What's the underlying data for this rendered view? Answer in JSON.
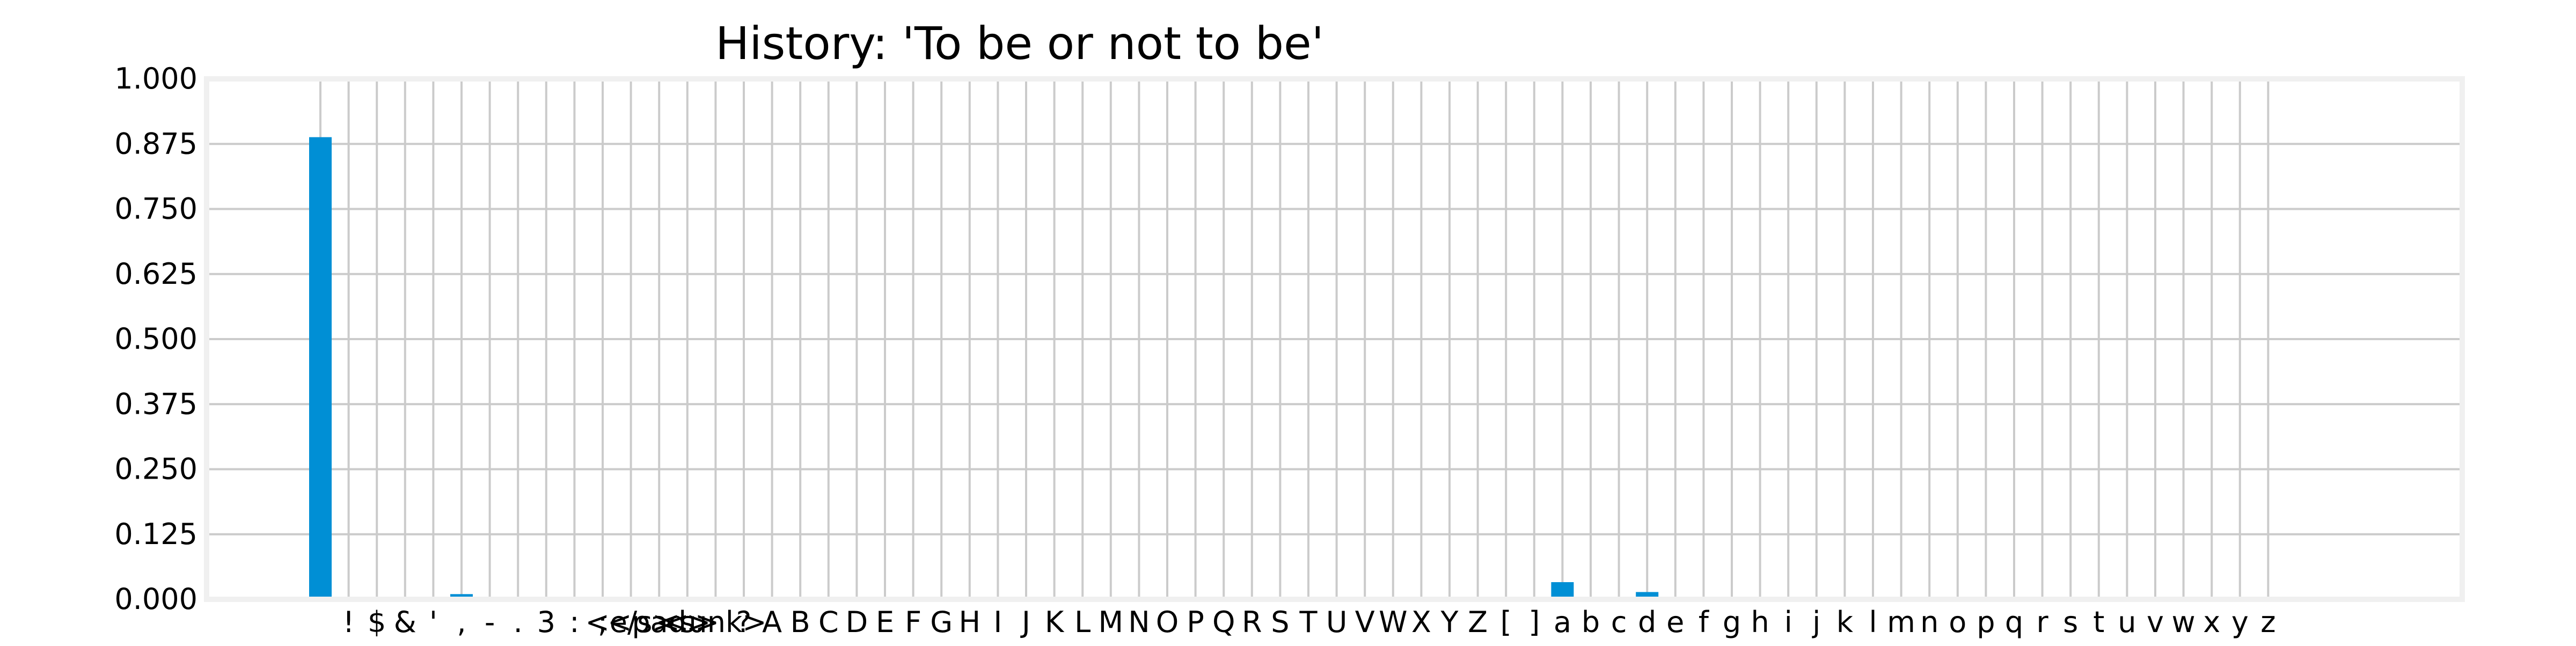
{
  "chart_data": {
    "type": "bar",
    "title": "History: 'To be or not to be'",
    "xlabel": "",
    "ylabel": "",
    "ylim": [
      0,
      1
    ],
    "yticks": [
      "0.000",
      "0.125",
      "0.250",
      "0.375",
      "0.500",
      "0.625",
      "0.750",
      "0.875",
      "1.000"
    ],
    "categories": [
      " ",
      "!",
      "$",
      "&",
      "'",
      ",",
      "-",
      ".",
      "3",
      ":",
      ";",
      "<e/s>",
      "<pad>",
      "<s>",
      "<unk>",
      "?",
      "A",
      "B",
      "C",
      "D",
      "E",
      "F",
      "G",
      "H",
      "I",
      "J",
      "K",
      "L",
      "M",
      "N",
      "O",
      "P",
      "Q",
      "R",
      "S",
      "T",
      "U",
      "V",
      "W",
      "X",
      "Y",
      "Z",
      "[",
      "]",
      "a",
      "b",
      "c",
      "d",
      "e",
      "f",
      "g",
      "h",
      "i",
      "j",
      "k",
      "l",
      "m",
      "n",
      "o",
      "p",
      "q",
      "r",
      "s",
      "t",
      "u",
      "v",
      "w",
      "x",
      "y",
      "z"
    ],
    "values": [
      0.888,
      0,
      0,
      0,
      0,
      0.01,
      0,
      0,
      0,
      0,
      0,
      0,
      0,
      0,
      0,
      0,
      0,
      0,
      0,
      0,
      0,
      0,
      0,
      0,
      0,
      0,
      0,
      0,
      0,
      0,
      0,
      0,
      0,
      0,
      0,
      0,
      0,
      0,
      0,
      0,
      0,
      0,
      0,
      0,
      0.033,
      0,
      0,
      0.014,
      0,
      0,
      0,
      0.005,
      0,
      0,
      0,
      0,
      0,
      0,
      0,
      0,
      0,
      0,
      0,
      0,
      0,
      0,
      0,
      0,
      0,
      0
    ],
    "bar_color": "#008fd5",
    "grid": true,
    "grid_color": "#cbcbcb",
    "frame_color": "#f0f0f0"
  }
}
